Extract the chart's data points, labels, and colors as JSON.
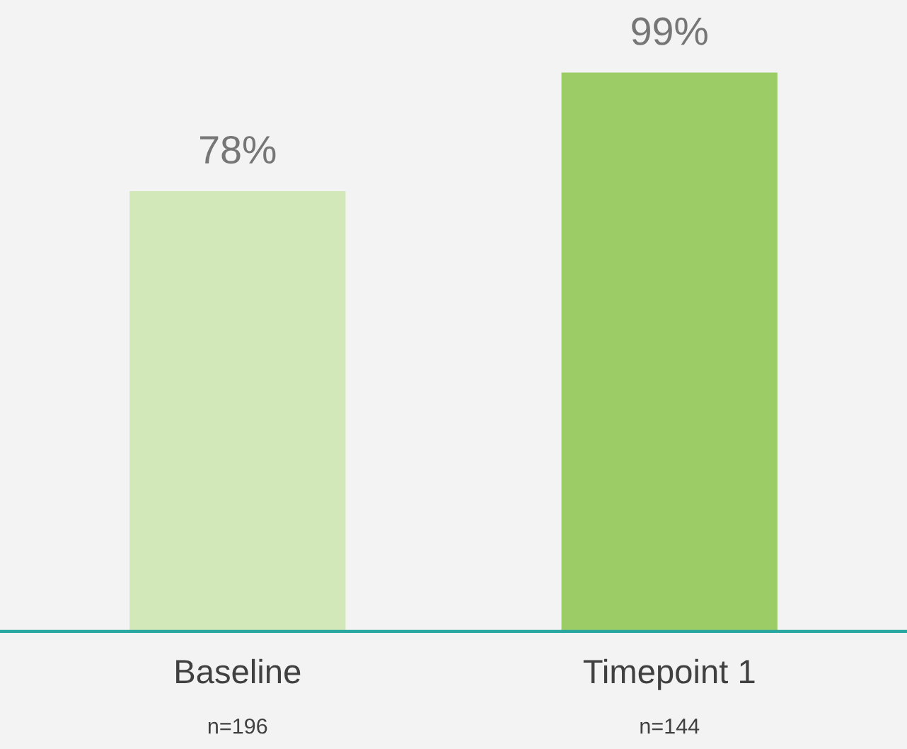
{
  "chart_data": {
    "type": "bar",
    "categories": [
      "Baseline\nn=196",
      "Timepoint 1\nn=144"
    ],
    "values": [
      78,
      99
    ],
    "colors": [
      "#d2e8b8",
      "#9ccc66"
    ],
    "data_labels": true,
    "value_labels": [
      "78%",
      "99%"
    ],
    "tick_labels": "x",
    "grid": false,
    "legend": false
  }
}
